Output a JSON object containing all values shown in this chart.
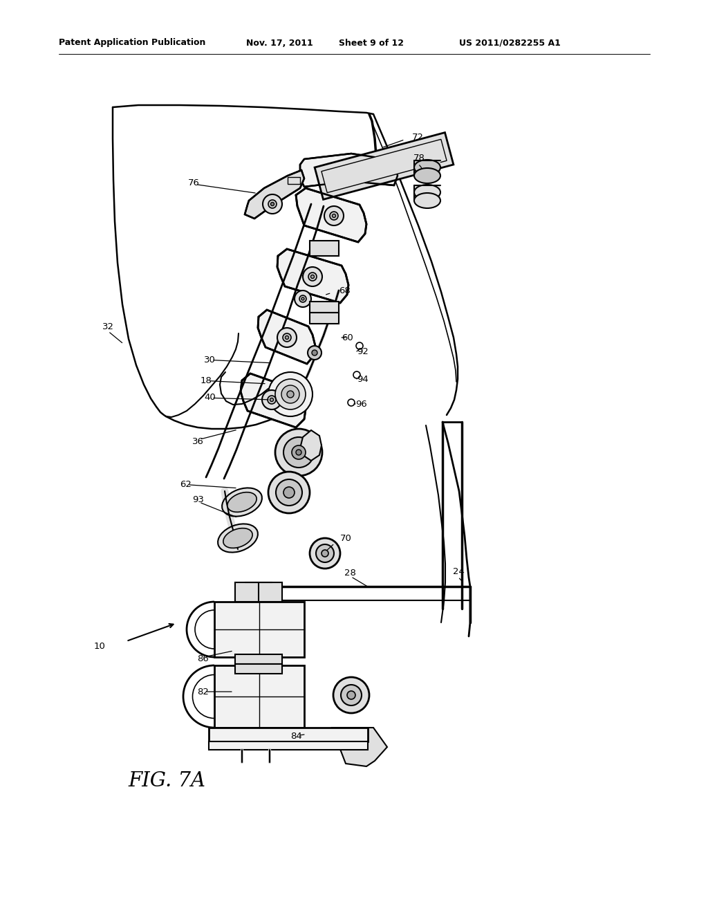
{
  "bg_color": "#ffffff",
  "header_text": "Patent Application Publication",
  "header_date": "Nov. 17, 2011",
  "header_sheet": "Sheet 9 of 12",
  "header_patent": "US 2011/0282255 A1",
  "figure_label": "FIG. 7A"
}
